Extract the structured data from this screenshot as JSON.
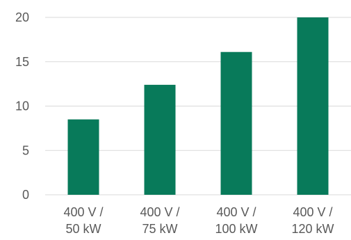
{
  "chart_data": {
    "type": "bar",
    "categories": [
      [
        "400 V /",
        "50 kW"
      ],
      [
        "400 V /",
        "75 kW"
      ],
      [
        "400 V /",
        "100 kW"
      ],
      [
        "400 V /",
        "120 kW"
      ]
    ],
    "values": [
      8.5,
      12.4,
      16.1,
      20
    ],
    "ylim": [
      0,
      20
    ],
    "yticks": [
      "0",
      "5",
      "10",
      "15",
      "20"
    ],
    "grid": true,
    "title": "",
    "xlabel": "",
    "ylabel": "",
    "colors": {
      "bar": "#087a5a",
      "grid": "#d9d9d9",
      "text": "#595959"
    }
  }
}
